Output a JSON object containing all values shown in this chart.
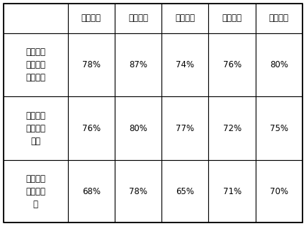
{
  "col_headers": [
    "",
    "实施例一",
    "实施例二",
    "实施例三",
    "实施例四",
    "实施例五"
  ],
  "row_headers": [
    "耐低温冲击性能提\n高百分比",
    "耐腑蚀性能提高百\n分比",
    "抗菌性能提高百分\n比"
  ],
  "row_headers_display": [
    "耐低温冲\n击性能提\n高百分比",
    "耐腑蚀性\n能提高百\n分比",
    "抗菌性能\n提高百分\n比"
  ],
  "data": [
    [
      "78%",
      "87%",
      "74%",
      "76%",
      "80%"
    ],
    [
      "76%",
      "80%",
      "77%",
      "72%",
      "75%"
    ],
    [
      "68%",
      "78%",
      "65%",
      "71%",
      "70%"
    ]
  ],
  "background_color": "#ffffff",
  "border_color": "#000000",
  "text_color": "#000000",
  "fontsize": 8.5
}
